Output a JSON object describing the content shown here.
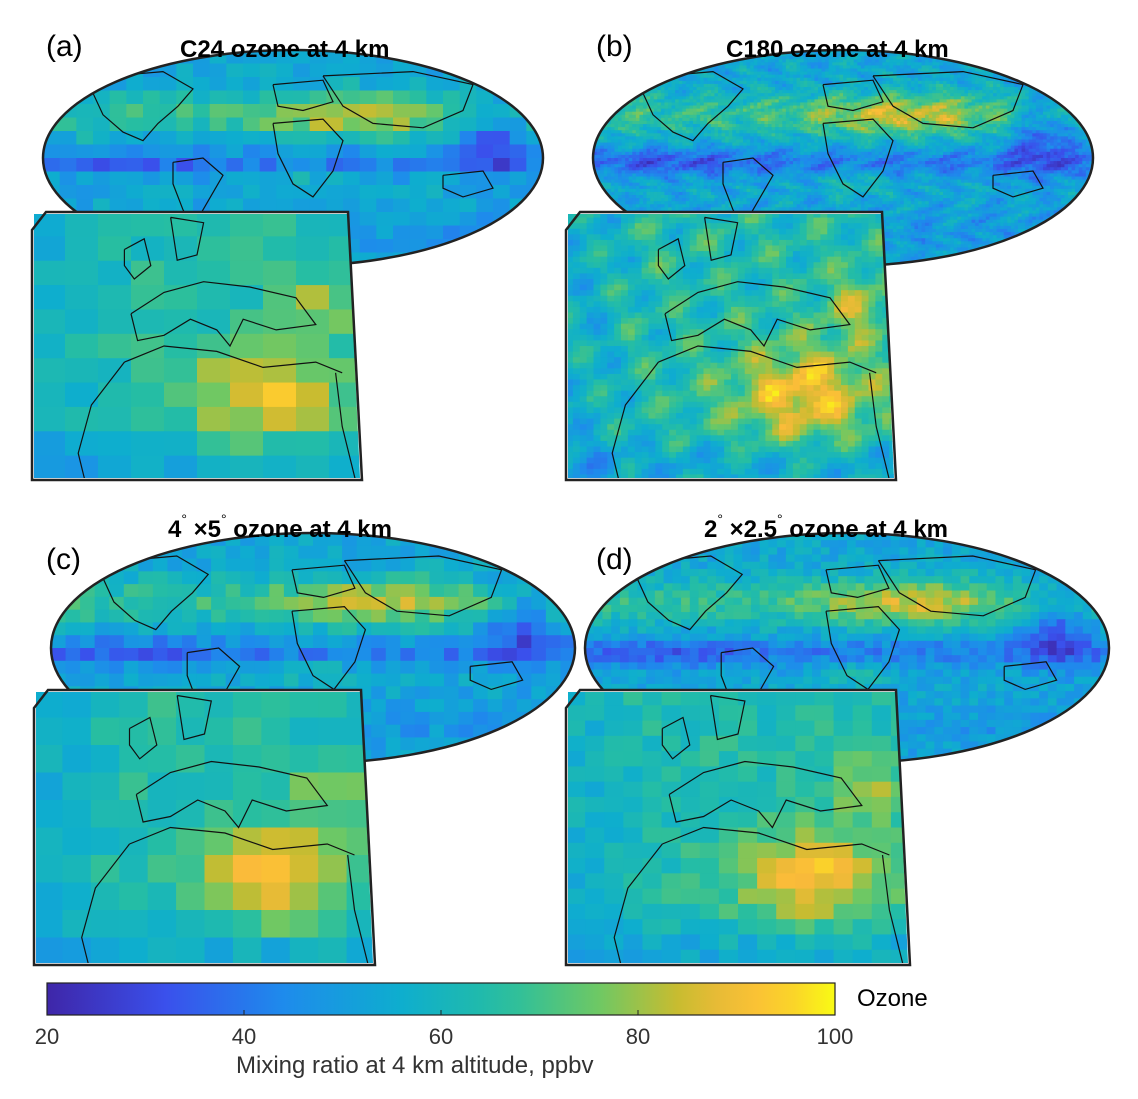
{
  "panels": [
    {
      "label": "(a)",
      "title": "C24 ozone at 4 km",
      "title_parts": null,
      "res": "coarse24",
      "seed": 11
    },
    {
      "label": "(b)",
      "title": "C180 ozone at 4 km",
      "title_parts": null,
      "res": "fine",
      "seed": 23
    },
    {
      "label": "(c)",
      "title": "",
      "title_parts": [
        "4",
        "°",
        " ×5",
        "°",
        " ozone at 4 km"
      ],
      "res": "coarse45",
      "seed": 37
    },
    {
      "label": "(d)",
      "title": "",
      "title_parts": [
        "2",
        "°",
        " ×2.5",
        "°",
        " ozone at 4 km"
      ],
      "res": "coarse225",
      "seed": 51
    }
  ],
  "colorbar": {
    "name": "Ozone",
    "label": "Mixing ratio at 4 km altitude, ppbv",
    "min": 20,
    "max": 100,
    "ticks": [
      "20",
      "40",
      "60",
      "80",
      "100"
    ],
    "colormap": "parula"
  }
}
